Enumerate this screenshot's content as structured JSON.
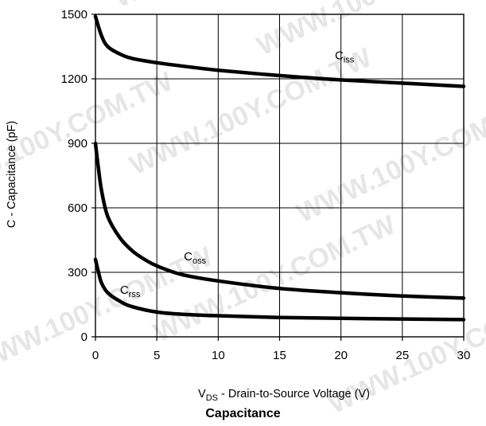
{
  "chart_data": {
    "type": "line",
    "title": "Capacitance",
    "ylabel": "C - Capacitance (pF)",
    "xlabel": {
      "prefix": "V",
      "sub": "DS",
      "rest": " - Drain-to-Source Voltage (V)"
    },
    "xlim": [
      0,
      30
    ],
    "ylim": [
      0,
      1500
    ],
    "x_ticks": [
      "0",
      "5",
      "10",
      "15",
      "20",
      "25",
      "30"
    ],
    "y_ticks": [
      "0",
      "300",
      "600",
      "900",
      "1200",
      "1500"
    ],
    "grid": true,
    "line_color": "#000000",
    "series": [
      {
        "name": "C",
        "name_sub": "iss",
        "x": [
          0,
          0.5,
          1,
          2,
          3,
          5,
          7,
          10,
          15,
          20,
          25,
          30
        ],
        "y": [
          1490,
          1400,
          1350,
          1315,
          1295,
          1275,
          1260,
          1240,
          1215,
          1195,
          1180,
          1165
        ]
      },
      {
        "name": "C",
        "name_sub": "oss",
        "x": [
          0,
          0.25,
          0.5,
          1,
          2,
          3,
          4,
          5,
          7,
          10,
          15,
          20,
          25,
          30
        ],
        "y": [
          900,
          780,
          680,
          560,
          460,
          400,
          360,
          330,
          290,
          260,
          225,
          205,
          190,
          180
        ]
      },
      {
        "name": "C",
        "name_sub": "rss",
        "x": [
          0,
          0.25,
          0.5,
          1,
          2,
          3,
          5,
          7,
          10,
          15,
          20,
          25,
          30
        ],
        "y": [
          360,
          300,
          250,
          205,
          165,
          140,
          115,
          105,
          98,
          90,
          86,
          83,
          80
        ]
      }
    ]
  },
  "watermark": "WWW.100Y.COM.TW"
}
